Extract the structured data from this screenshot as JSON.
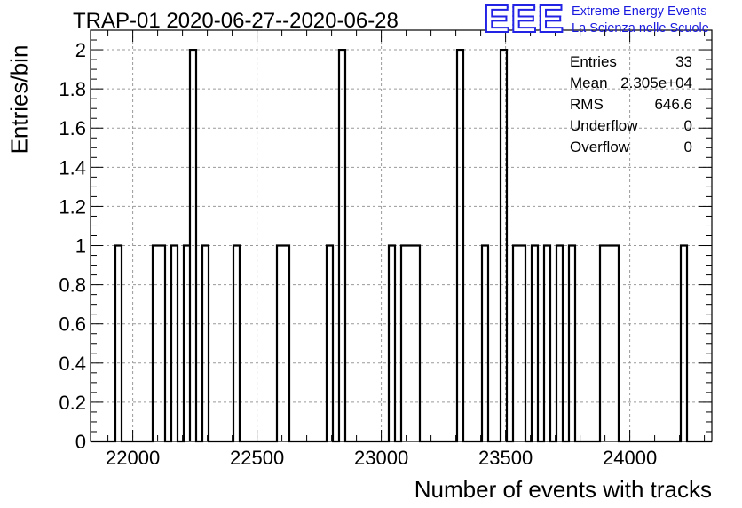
{
  "title": "TRAP-01 2020-06-27--2020-06-28",
  "logo": {
    "mark": "EEE",
    "line1": "Extreme Energy Events",
    "line2": "La Scienza nelle Scuole",
    "color": "#2323e6"
  },
  "stats": {
    "entries_label": "Entries",
    "entries_value": "33",
    "mean_label": "Mean",
    "mean_value": "2.305e+04",
    "rms_label": "RMS",
    "rms_value": "646.6",
    "underflow_label": "Underflow",
    "underflow_value": "0",
    "overflow_label": "Overflow",
    "overflow_value": "0"
  },
  "chart_data": {
    "type": "histogram",
    "title": "TRAP-01 2020-06-27--2020-06-28",
    "xlabel": "Number of events with tracks",
    "ylabel": "Entries/bin",
    "xlim": [
      21830,
      24330
    ],
    "ylim": [
      0,
      2.1
    ],
    "bin_width": 25,
    "x_ticks": [
      22000,
      22500,
      23000,
      23500,
      24000
    ],
    "y_ticks": [
      0,
      0.2,
      0.4,
      0.6,
      0.8,
      1,
      1.2,
      1.4,
      1.6,
      1.8,
      2
    ],
    "y_tick_labels": [
      "0",
      "0.2",
      "0.4",
      "0.6",
      "0.8",
      "1",
      "1.2",
      "1.4",
      "1.6",
      "1.8",
      "2"
    ],
    "grid": true,
    "line_color": "#000000",
    "bins": [
      {
        "x_low": 21930,
        "x_high": 21955,
        "count": 1
      },
      {
        "x_low": 22080,
        "x_high": 22130,
        "count": 1
      },
      {
        "x_low": 22155,
        "x_high": 22180,
        "count": 1
      },
      {
        "x_low": 22205,
        "x_high": 22230,
        "count": 1
      },
      {
        "x_low": 22230,
        "x_high": 22255,
        "count": 2
      },
      {
        "x_low": 22280,
        "x_high": 22305,
        "count": 1
      },
      {
        "x_low": 22405,
        "x_high": 22430,
        "count": 1
      },
      {
        "x_low": 22580,
        "x_high": 22630,
        "count": 1
      },
      {
        "x_low": 22780,
        "x_high": 22805,
        "count": 1
      },
      {
        "x_low": 22830,
        "x_high": 22855,
        "count": 2
      },
      {
        "x_low": 23030,
        "x_high": 23055,
        "count": 1
      },
      {
        "x_low": 23080,
        "x_high": 23155,
        "count": 1
      },
      {
        "x_low": 23305,
        "x_high": 23330,
        "count": 2
      },
      {
        "x_low": 23405,
        "x_high": 23430,
        "count": 1
      },
      {
        "x_low": 23480,
        "x_high": 23505,
        "count": 2
      },
      {
        "x_low": 23530,
        "x_high": 23580,
        "count": 1
      },
      {
        "x_low": 23605,
        "x_high": 23630,
        "count": 1
      },
      {
        "x_low": 23655,
        "x_high": 23680,
        "count": 1
      },
      {
        "x_low": 23705,
        "x_high": 23730,
        "count": 1
      },
      {
        "x_low": 23755,
        "x_high": 23780,
        "count": 1
      },
      {
        "x_low": 23880,
        "x_high": 23955,
        "count": 1
      },
      {
        "x_low": 24205,
        "x_high": 24230,
        "count": 1
      }
    ]
  }
}
